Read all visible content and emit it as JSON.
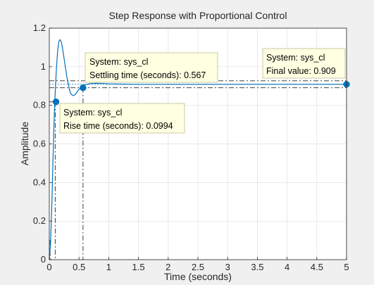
{
  "chart_data": {
    "type": "line",
    "title": "Step Response with Proportional Control",
    "xlabel": "Time (seconds)",
    "ylabel": "Amplitude",
    "xlim": [
      0,
      5
    ],
    "ylim": [
      0,
      1.2
    ],
    "grid": true,
    "x_ticks": [
      "0",
      "0.5",
      "1",
      "1.5",
      "2",
      "2.5",
      "3",
      "3.5",
      "4",
      "4.5",
      "5"
    ],
    "y_ticks": [
      "0",
      "0.2",
      "0.4",
      "0.6",
      "0.8",
      "1",
      "1.2"
    ],
    "colors": {
      "line": "#0072bd",
      "reference": "#262626",
      "grid": "#dfdfdf",
      "datatip_bg": "#ffffe1",
      "datatip_border": "#c8c8a8",
      "figure_bg": "#f0f0f0"
    },
    "series": [
      {
        "x": [
          0,
          0.02,
          0.04,
          0.06,
          0.08,
          0.1,
          0.12,
          0.14,
          0.16,
          0.18,
          0.2,
          0.22,
          0.24,
          0.26,
          0.28,
          0.3,
          0.32,
          0.34,
          0.36,
          0.38,
          0.4,
          0.42,
          0.44,
          0.46,
          0.48,
          0.5,
          0.52,
          0.54,
          0.56,
          0.58,
          0.6,
          0.65,
          0.7,
          0.8,
          0.9,
          1.0,
          1.2,
          1.5,
          2.0,
          3.0,
          4.0,
          5.0
        ],
        "y": [
          0,
          0.08,
          0.26,
          0.5,
          0.72,
          0.87,
          0.99,
          1.08,
          1.13,
          1.14,
          1.13,
          1.1,
          1.06,
          1.02,
          0.98,
          0.94,
          0.91,
          0.88,
          0.86,
          0.855,
          0.85,
          0.852,
          0.858,
          0.866,
          0.875,
          0.883,
          0.889,
          0.894,
          0.899,
          0.903,
          0.906,
          0.91,
          0.913,
          0.914,
          0.913,
          0.911,
          0.91,
          0.909,
          0.909,
          0.909,
          0.909,
          0.909
        ]
      }
    ],
    "reference_lines": {
      "final_value": 0.909,
      "settling_band_upper": 0.927,
      "settling_band_lower": 0.891,
      "rise_time": 0.0994,
      "rise_time_start": 0.0133,
      "settling_time": 0.567
    },
    "markers": [
      {
        "x": 0.113,
        "y": 0.818
      },
      {
        "x": 0.567,
        "y": 0.891
      },
      {
        "x": 5.0,
        "y": 0.909
      }
    ],
    "datatips": [
      {
        "line1": "System: sys_cl",
        "line2": "Settling time (seconds): 0.567"
      },
      {
        "line1": "System: sys_cl",
        "line2": "Final value: 0.909"
      },
      {
        "line1": "System: sys_cl",
        "line2": "Rise time (seconds): 0.0994"
      }
    ]
  }
}
